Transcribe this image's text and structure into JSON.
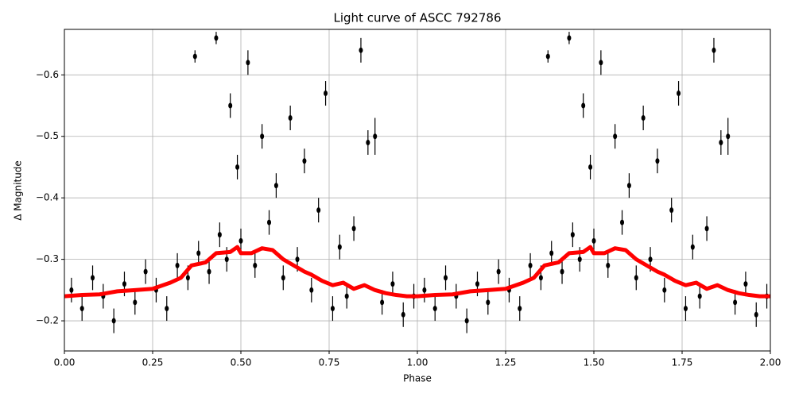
{
  "chart_data": {
    "type": "scatter",
    "title": "Light curve of ASCC 792786",
    "x_label": "Phase",
    "y_label": "Δ Magnitude",
    "xlim": [
      0,
      2
    ],
    "ylim": [
      -0.151,
      -0.674
    ],
    "xticks": [
      {
        "value": 0,
        "label": "0.00"
      },
      {
        "value": 0.25,
        "label": "0.25"
      },
      {
        "value": 0.5,
        "label": "0.50"
      },
      {
        "value": 0.75,
        "label": "0.75"
      },
      {
        "value": 1,
        "label": "1.00"
      },
      {
        "value": 1.25,
        "label": "1.25"
      },
      {
        "value": 1.5,
        "label": "1.50"
      },
      {
        "value": 1.75,
        "label": "1.75"
      },
      {
        "value": 2,
        "label": "2.00"
      }
    ],
    "yticks": [
      {
        "value": -0.2,
        "label": "−0.2"
      },
      {
        "value": -0.3,
        "label": "−0.3"
      },
      {
        "value": -0.4,
        "label": "−0.4"
      },
      {
        "value": -0.5,
        "label": "−0.5"
      },
      {
        "value": -0.6,
        "label": "−0.6"
      }
    ],
    "grid": true,
    "series": [
      {
        "kind": "errorbar",
        "color": "#000000",
        "x": [
          0.02,
          0.05,
          0.08,
          0.11,
          0.14,
          0.17,
          0.2,
          0.23,
          0.26,
          0.29,
          0.32,
          0.35,
          0.37,
          0.38,
          0.41,
          0.43,
          0.44,
          0.46,
          0.47,
          0.49,
          0.5,
          0.52,
          0.54,
          0.56,
          0.58,
          0.6,
          0.62,
          0.64,
          0.66,
          0.68,
          0.7,
          0.72,
          0.74,
          0.76,
          0.78,
          0.8,
          0.82,
          0.84,
          0.86,
          0.88,
          0.9,
          0.93,
          0.96,
          0.99,
          1.02,
          1.05,
          1.08,
          1.11,
          1.14,
          1.17,
          1.2,
          1.23,
          1.26,
          1.29,
          1.32,
          1.35,
          1.37,
          1.38,
          1.41,
          1.43,
          1.44,
          1.46,
          1.47,
          1.49,
          1.5,
          1.52,
          1.54,
          1.56,
          1.58,
          1.6,
          1.62,
          1.64,
          1.66,
          1.68,
          1.7,
          1.72,
          1.74,
          1.76,
          1.78,
          1.8,
          1.82,
          1.84,
          1.86,
          1.88,
          1.9,
          1.93,
          1.96,
          1.99
        ],
        "values": [
          -0.25,
          -0.22,
          -0.27,
          -0.24,
          -0.2,
          -0.26,
          -0.23,
          -0.28,
          -0.25,
          -0.22,
          -0.29,
          -0.27,
          -0.63,
          -0.31,
          -0.28,
          -0.66,
          -0.34,
          -0.3,
          -0.55,
          -0.45,
          -0.33,
          -0.62,
          -0.29,
          -0.5,
          -0.36,
          -0.42,
          -0.27,
          -0.53,
          -0.3,
          -0.46,
          -0.25,
          -0.38,
          -0.57,
          -0.22,
          -0.32,
          -0.24,
          -0.35,
          -0.64,
          -0.49,
          -0.5,
          -0.23,
          -0.26,
          -0.21,
          -0.24,
          -0.25,
          -0.22,
          -0.27,
          -0.24,
          -0.2,
          -0.26,
          -0.23,
          -0.28,
          -0.25,
          -0.22,
          -0.29,
          -0.27,
          -0.63,
          -0.31,
          -0.28,
          -0.66,
          -0.34,
          -0.3,
          -0.55,
          -0.45,
          -0.33,
          -0.62,
          -0.29,
          -0.5,
          -0.36,
          -0.42,
          -0.27,
          -0.53,
          -0.3,
          -0.46,
          -0.25,
          -0.38,
          -0.57,
          -0.22,
          -0.32,
          -0.24,
          -0.35,
          -0.64,
          -0.49,
          -0.5,
          -0.23,
          -0.26,
          -0.21,
          -0.24
        ],
        "errors": [
          0.02,
          0.02,
          0.02,
          0.02,
          0.02,
          0.02,
          0.02,
          0.02,
          0.02,
          0.02,
          0.02,
          0.02,
          0.01,
          0.02,
          0.02,
          0.01,
          0.02,
          0.02,
          0.02,
          0.02,
          0.02,
          0.02,
          0.02,
          0.02,
          0.02,
          0.02,
          0.02,
          0.02,
          0.02,
          0.02,
          0.02,
          0.02,
          0.02,
          0.02,
          0.02,
          0.02,
          0.02,
          0.02,
          0.02,
          0.03,
          0.02,
          0.02,
          0.02,
          0.02,
          0.02,
          0.02,
          0.02,
          0.02,
          0.02,
          0.02,
          0.02,
          0.02,
          0.02,
          0.02,
          0.02,
          0.02,
          0.01,
          0.02,
          0.02,
          0.01,
          0.02,
          0.02,
          0.02,
          0.02,
          0.02,
          0.02,
          0.02,
          0.02,
          0.02,
          0.02,
          0.02,
          0.02,
          0.02,
          0.02,
          0.02,
          0.02,
          0.02,
          0.02,
          0.02,
          0.02,
          0.02,
          0.02,
          0.02,
          0.03,
          0.02,
          0.02,
          0.02,
          0.02
        ]
      },
      {
        "kind": "line",
        "color": "#ff0000",
        "x": [
          0,
          0.05,
          0.1,
          0.15,
          0.2,
          0.25,
          0.3,
          0.33,
          0.36,
          0.4,
          0.43,
          0.47,
          0.49,
          0.5,
          0.53,
          0.56,
          0.59,
          0.62,
          0.65,
          0.68,
          0.7,
          0.73,
          0.76,
          0.79,
          0.82,
          0.85,
          0.88,
          0.91,
          0.94,
          0.97,
          1,
          1.05,
          1.1,
          1.15,
          1.2,
          1.25,
          1.3,
          1.33,
          1.36,
          1.4,
          1.43,
          1.47,
          1.49,
          1.5,
          1.53,
          1.56,
          1.59,
          1.62,
          1.65,
          1.68,
          1.7,
          1.73,
          1.76,
          1.79,
          1.82,
          1.85,
          1.88,
          1.91,
          1.94,
          1.97,
          2
        ],
        "values": [
          -0.24,
          -0.242,
          -0.243,
          -0.248,
          -0.25,
          -0.252,
          -0.262,
          -0.27,
          -0.29,
          -0.295,
          -0.31,
          -0.312,
          -0.32,
          -0.31,
          -0.31,
          -0.318,
          -0.315,
          -0.3,
          -0.29,
          -0.28,
          -0.275,
          -0.265,
          -0.258,
          -0.262,
          -0.252,
          -0.258,
          -0.25,
          -0.245,
          -0.242,
          -0.24,
          -0.24,
          -0.242,
          -0.243,
          -0.248,
          -0.25,
          -0.252,
          -0.262,
          -0.27,
          -0.29,
          -0.295,
          -0.31,
          -0.312,
          -0.32,
          -0.31,
          -0.31,
          -0.318,
          -0.315,
          -0.3,
          -0.29,
          -0.28,
          -0.275,
          -0.265,
          -0.258,
          -0.262,
          -0.252,
          -0.258,
          -0.25,
          -0.245,
          -0.242,
          -0.24,
          -0.24
        ]
      }
    ]
  }
}
